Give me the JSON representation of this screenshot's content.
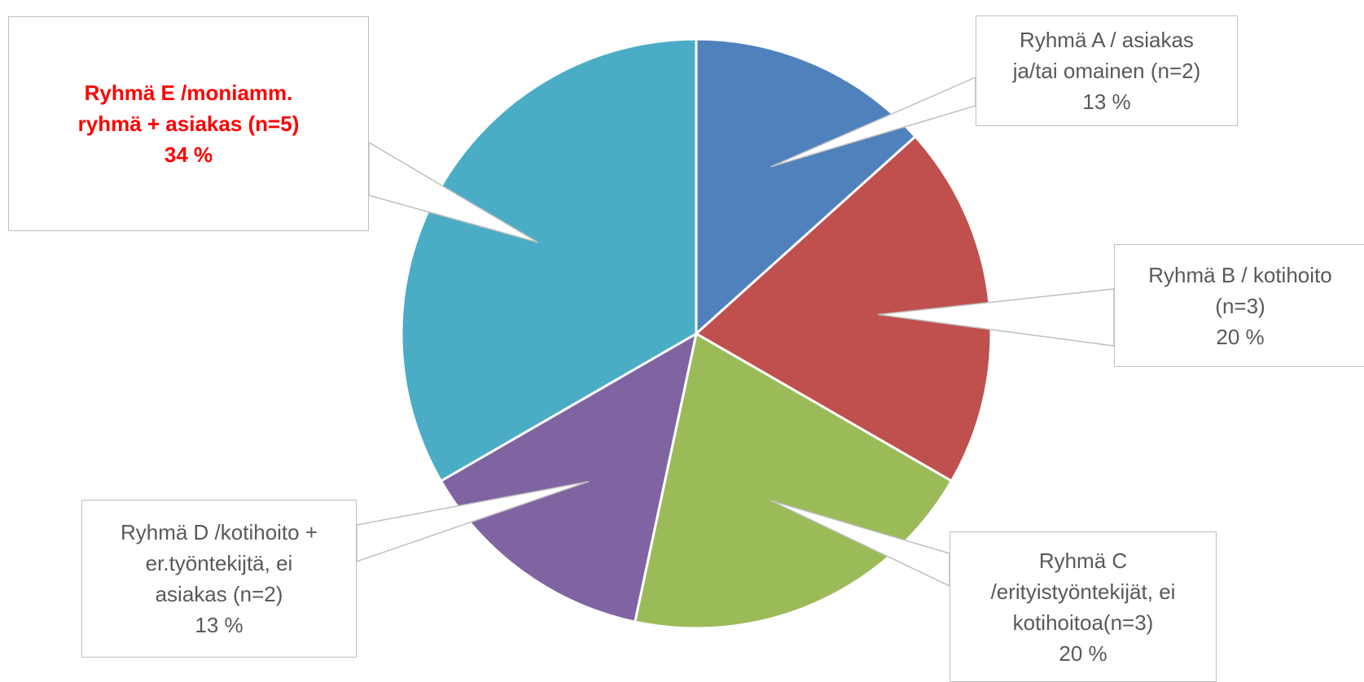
{
  "chart_data": {
    "type": "pie",
    "title": "",
    "slices": [
      {
        "name_lines": [
          "Ryhmä A / asiakas",
          "ja/tai omainen (n=2)"
        ],
        "n": 2,
        "percent": 13,
        "pct_label": "13 %",
        "color": "#4f81bd",
        "highlight": false
      },
      {
        "name_lines": [
          "Ryhmä B / kotihoito",
          "(n=3)"
        ],
        "n": 3,
        "percent": 20,
        "pct_label": "20 %",
        "color": "#c0504d",
        "highlight": false
      },
      {
        "name_lines": [
          "Ryhmä C",
          "/erityistyöntekijät, ei",
          "kotihoitoa(n=3)"
        ],
        "n": 3,
        "percent": 20,
        "pct_label": "20 %",
        "color": "#9bbb59",
        "highlight": false
      },
      {
        "name_lines": [
          "Ryhmä D /kotihoito +",
          "er.työntekijtä, ei",
          "asiakas (n=2)"
        ],
        "n": 2,
        "percent": 13,
        "pct_label": "13 %",
        "color": "#8064a2",
        "highlight": false
      },
      {
        "name_lines": [
          "Ryhmä E /moniamm.",
          "ryhmä + asiakas (n=5)"
        ],
        "n": 5,
        "percent": 34,
        "pct_label": "34 %",
        "color": "#4bacc6",
        "highlight": true
      }
    ],
    "start_angle_deg": 0,
    "direction": "clockwise",
    "legend": "none",
    "highlight_color": "#ff0000",
    "label_text_color": "#595959",
    "callout_border_color": "#bfbfbf"
  }
}
